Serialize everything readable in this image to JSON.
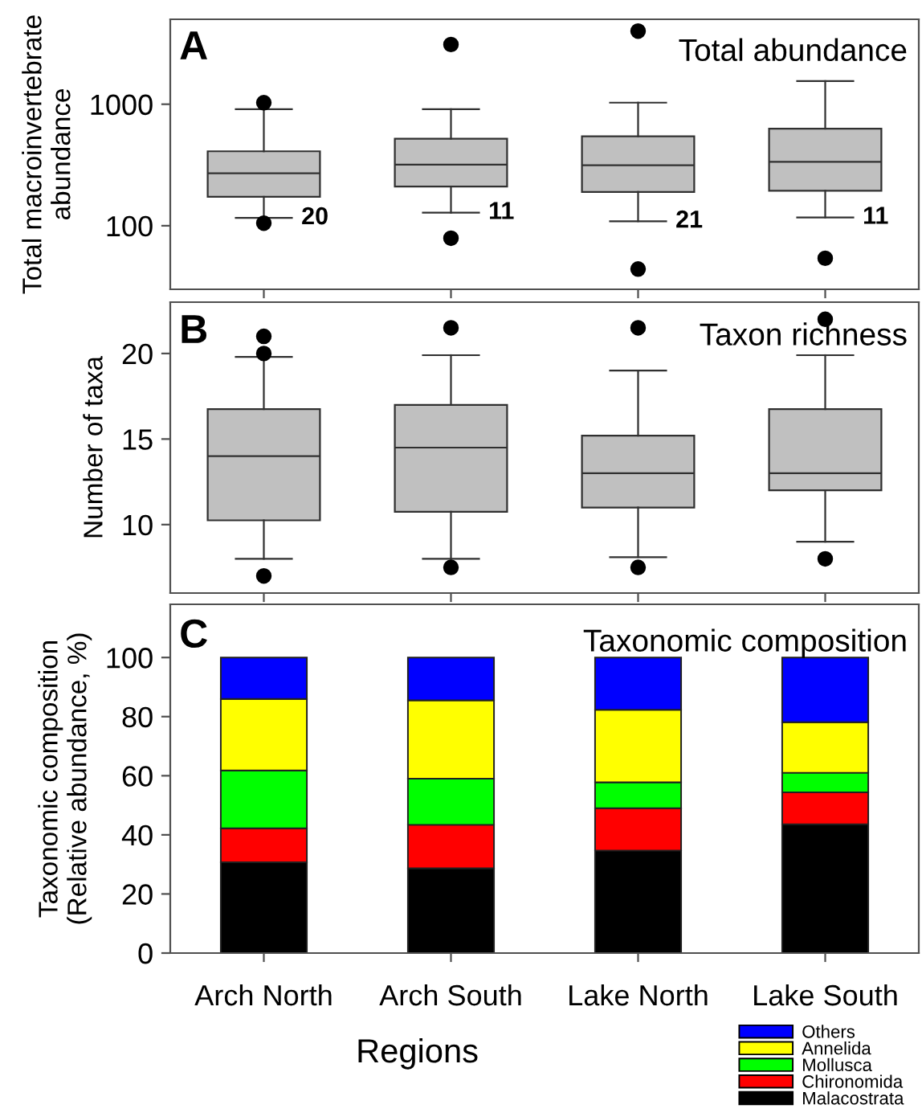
{
  "chart_data": [
    {
      "type": "box",
      "title": "Total abundance",
      "ylabel": "Total macroinvertebrate\nabundance",
      "categories": [
        "Arch North",
        "Arch South",
        "Lake North",
        "Lake South"
      ],
      "log": "y",
      "ylim": [
        30,
        5000
      ],
      "yticks": [
        100,
        1000
      ],
      "tick_labels": "y",
      "color": "#c0c0c0",
      "boxes": [
        {
          "low": 116,
          "q1": 173,
          "median": 270,
          "q3": 410,
          "high": 910,
          "outliers": [
            1030,
            105
          ]
        },
        {
          "low": 128,
          "q1": 210,
          "median": 318,
          "q3": 520,
          "high": 910,
          "outliers": [
            3100,
            79
          ]
        },
        {
          "low": 109,
          "q1": 190,
          "median": 315,
          "q3": 545,
          "high": 1030,
          "outliers": [
            4000,
            44
          ]
        },
        {
          "low": 117,
          "q1": 194,
          "median": 336,
          "q3": 630,
          "high": 1550,
          "outliers": [
            54
          ]
        }
      ],
      "annotations": [
        "A",
        {
          "text": "20",
          "x": "Arch North",
          "y": 116
        },
        {
          "text": "11",
          "x": "Arch South",
          "y": 128
        },
        {
          "text": "21",
          "x": "Lake North",
          "y": 109
        },
        {
          "text": "11",
          "x": "Lake South",
          "y": 117
        }
      ]
    },
    {
      "type": "box",
      "title": "Taxon richness",
      "ylabel": "Number of taxa",
      "categories": [
        "Arch North",
        "Arch South",
        "Lake North",
        "Lake South"
      ],
      "ylim": [
        6,
        23
      ],
      "yticks": [
        10,
        15,
        20
      ],
      "tick_labels": "y",
      "color": "#c0c0c0",
      "boxes": [
        {
          "low": 8,
          "q1": 10.25,
          "median": 14,
          "q3": 16.75,
          "high": 19.8,
          "outliers": [
            21,
            20,
            7
          ]
        },
        {
          "low": 8,
          "q1": 10.75,
          "median": 14.5,
          "q3": 17,
          "high": 19.9,
          "outliers": [
            21.5,
            7.5
          ]
        },
        {
          "low": 8.1,
          "q1": 11,
          "median": 13,
          "q3": 15.2,
          "high": 19,
          "outliers": [
            21.5,
            7.5
          ]
        },
        {
          "low": 9,
          "q1": 12,
          "median": 13,
          "q3": 16.75,
          "high": 19.9,
          "outliers": [
            22,
            8
          ]
        }
      ],
      "annotations": [
        "B"
      ]
    },
    {
      "type": "bar",
      "stacked": true,
      "title": "Taxonomic composition",
      "ylabel": "Taxonomic composition\n(Relative abundance, %)",
      "xlabel": "Regions",
      "categories": [
        "Arch North",
        "Arch South",
        "Lake North",
        "Lake South"
      ],
      "ylim": [
        0,
        118
      ],
      "yticks": [
        0,
        20,
        40,
        60,
        80,
        100
      ],
      "legend": "bottom right",
      "series": [
        {
          "name": "Malacostrata",
          "color": "#000000",
          "values": [
            30.7,
            28.7,
            34.7,
            43.6
          ]
        },
        {
          "name": "Chironomida",
          "color": "#ff0000",
          "values": [
            11.5,
            14.7,
            14.3,
            10.8
          ]
        },
        {
          "name": "Mollusca",
          "color": "#00ff00",
          "values": [
            19.6,
            15.6,
            8.8,
            6.6
          ]
        },
        {
          "name": "Annelida",
          "color": "#ffff00",
          "values": [
            24.2,
            26.5,
            24.5,
            17.1
          ]
        },
        {
          "name": "Others",
          "color": "#0000ff",
          "values": [
            14,
            14.5,
            17.7,
            21.9
          ]
        }
      ],
      "annotations": [
        "C"
      ]
    }
  ]
}
